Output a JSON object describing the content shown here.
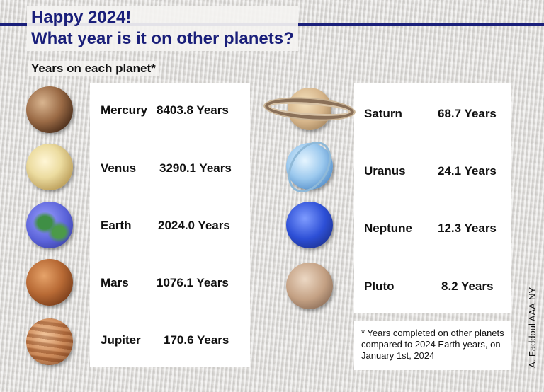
{
  "header": {
    "line1": "Happy 2024!",
    "line2": "What year is it on other planets?",
    "subtitle": "Years on each planet*",
    "accent_color": "#1a1f7a"
  },
  "planets_left": [
    {
      "name": "Mercury",
      "value": "8403.8 Years"
    },
    {
      "name": "Venus",
      "value": "3290.1 Years"
    },
    {
      "name": "Earth",
      "value": "2024.0 Years"
    },
    {
      "name": "Mars",
      "value": "1076.1 Years"
    },
    {
      "name": "Jupiter",
      "value": "170.6 Years"
    }
  ],
  "planets_right": [
    {
      "name": "Saturn",
      "value": "68.7 Years"
    },
    {
      "name": "Uranus",
      "value": "24.1 Years"
    },
    {
      "name": "Neptune",
      "value": "12.3 Years"
    },
    {
      "name": "Pluto",
      "value": "8.2 Years"
    }
  ],
  "footnote": "* Years completed on other planets compared to 2024 Earth years, on January 1st, 2024",
  "credit": "A. Faddoul  AAA-NY"
}
